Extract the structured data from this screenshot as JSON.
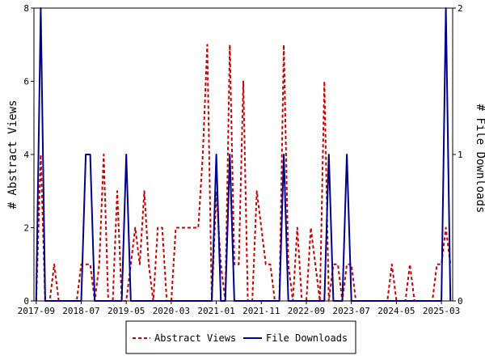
{
  "chart_data": {
    "type": "line",
    "x_tick_labels": [
      "2017-09",
      "2018-07",
      "2019-05",
      "2020-03",
      "2021-01",
      "2021-11",
      "2022-09",
      "2023-07",
      "2024-05",
      "2025-03"
    ],
    "months_per_tick": 10,
    "left_axis": {
      "label": "# Abstract Views",
      "ylim": [
        0,
        8
      ],
      "ticks": [
        "0",
        "2",
        "4",
        "6",
        "8"
      ]
    },
    "right_axis": {
      "label": "# File Downloads",
      "ylim": [
        0,
        2
      ],
      "ticks": [
        "0",
        "1",
        "2"
      ]
    },
    "grid": false,
    "legend_position": "bottom-center",
    "series": [
      {
        "name": "Abstract Views",
        "axis": "left",
        "color": "#cc0000",
        "style": "dashed",
        "values": [
          0,
          4,
          0,
          0,
          1,
          0,
          0,
          0,
          0,
          0,
          1,
          1,
          1,
          0,
          1,
          4,
          0,
          0,
          3,
          0,
          0,
          1,
          2,
          1,
          3,
          1,
          0,
          2,
          2,
          0,
          0,
          2,
          2,
          2,
          2,
          2,
          2,
          4,
          7,
          0,
          3,
          1,
          0,
          7,
          1,
          1,
          6,
          0,
          0,
          3,
          2,
          1,
          1,
          0,
          0,
          7,
          1,
          0,
          2,
          0,
          0,
          2,
          1,
          0,
          6,
          0,
          1,
          1,
          0,
          1,
          1,
          0,
          0,
          0,
          0,
          0,
          0,
          0,
          0,
          1,
          0,
          0,
          0,
          1,
          0,
          0,
          0,
          0,
          0,
          1,
          1,
          2,
          1
        ]
      },
      {
        "name": "File Downloads",
        "axis": "right",
        "color": "#00008b",
        "style": "solid",
        "values": [
          0,
          2,
          0,
          0,
          0,
          0,
          0,
          0,
          0,
          0,
          0,
          1,
          1,
          0,
          0,
          0,
          0,
          0,
          0,
          0,
          1,
          0,
          0,
          0,
          0,
          0,
          0,
          0,
          0,
          0,
          0,
          0,
          0,
          0,
          0,
          0,
          0,
          0,
          0,
          0,
          1,
          0,
          0,
          1,
          0,
          0,
          0,
          0,
          0,
          0,
          0,
          0,
          0,
          0,
          0,
          1,
          0,
          0,
          0,
          0,
          0,
          0,
          0,
          0,
          0,
          1,
          0,
          0,
          0,
          1,
          0,
          0,
          0,
          0,
          0,
          0,
          0,
          0,
          0,
          0,
          0,
          0,
          0,
          0,
          0,
          0,
          0,
          0,
          0,
          0,
          0,
          2,
          0
        ]
      }
    ]
  }
}
